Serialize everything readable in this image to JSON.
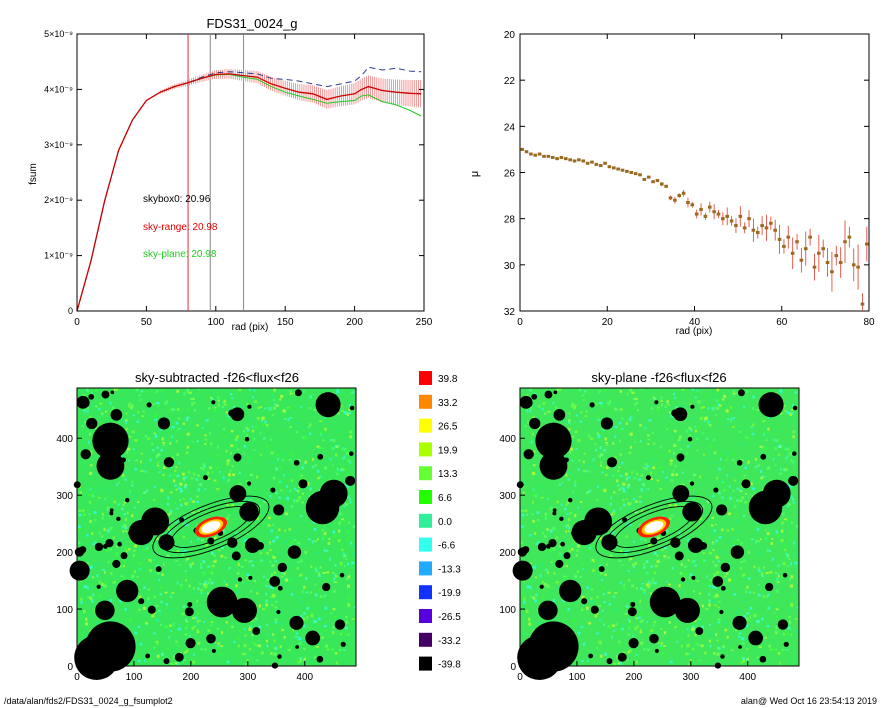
{
  "chart_data": [
    {
      "id": "growth-curve",
      "type": "line",
      "title": "FDS31_0024_g",
      "xlabel": "rad (pix)",
      "ylabel": "fsum",
      "xlim": [
        0,
        250
      ],
      "ylim": [
        0,
        5e-09
      ],
      "xticks": [
        "0",
        "50",
        "100",
        "150",
        "200",
        "250"
      ],
      "yticks": [
        "0",
        "1×10⁻⁹",
        "2×10⁻⁹",
        "3×10⁻⁹",
        "4×10⁻⁹",
        "5×10⁻⁹"
      ],
      "vlines": [
        {
          "x": 80,
          "color": "#e03030"
        },
        {
          "x": 96,
          "color": "#888888"
        },
        {
          "x": 120,
          "color": "#888888"
        }
      ],
      "annotations": [
        {
          "text": "skybox0: 20.96",
          "color": "#000000"
        },
        {
          "text": "sky-range: 20.98",
          "color": "#e00000"
        },
        {
          "text": "sky-plane: 20.98",
          "color": "#22cc22"
        }
      ],
      "series": [
        {
          "style": "dashed",
          "color": "#2b3a8c",
          "x": [
            0,
            10,
            20,
            30,
            40,
            50,
            60,
            70,
            80,
            90,
            100,
            110,
            120,
            130,
            140,
            150,
            160,
            170,
            180,
            190,
            200,
            205,
            210,
            220,
            230,
            240,
            248
          ],
          "y": [
            0,
            0.9,
            2.0,
            2.9,
            3.45,
            3.8,
            3.95,
            4.05,
            4.12,
            4.22,
            4.3,
            4.32,
            4.3,
            4.28,
            4.2,
            4.18,
            4.15,
            4.1,
            4.05,
            4.1,
            4.15,
            4.25,
            4.4,
            4.35,
            4.38,
            4.33,
            4.32
          ]
        },
        {
          "style": "solid",
          "color": "#cc0000",
          "x": [
            0,
            10,
            20,
            30,
            40,
            50,
            60,
            70,
            80,
            90,
            100,
            110,
            120,
            130,
            140,
            150,
            160,
            170,
            180,
            190,
            200,
            205,
            210,
            220,
            230,
            240,
            248
          ],
          "y": [
            0,
            0.9,
            2.0,
            2.9,
            3.45,
            3.8,
            3.95,
            4.05,
            4.12,
            4.2,
            4.27,
            4.28,
            4.25,
            4.22,
            4.1,
            4.02,
            3.95,
            3.92,
            3.82,
            3.88,
            3.92,
            4.0,
            4.05,
            3.98,
            3.95,
            3.93,
            3.92
          ]
        },
        {
          "style": "solid",
          "color": "#22cc22",
          "x": [
            0,
            10,
            20,
            30,
            40,
            50,
            60,
            70,
            80,
            90,
            100,
            110,
            120,
            130,
            140,
            150,
            160,
            170,
            180,
            190,
            200,
            205,
            210,
            220,
            230,
            240,
            248
          ],
          "y": [
            0,
            0.9,
            2.0,
            2.9,
            3.45,
            3.8,
            3.95,
            4.05,
            4.12,
            4.2,
            4.26,
            4.27,
            4.22,
            4.18,
            4.05,
            3.95,
            3.88,
            3.82,
            3.75,
            3.78,
            3.8,
            3.88,
            3.9,
            3.78,
            3.72,
            3.62,
            3.52
          ]
        }
      ]
    },
    {
      "id": "surface-brightness",
      "type": "scatter",
      "title": "",
      "xlabel": "rad (pix)",
      "ylabel": "μ",
      "xlim": [
        0,
        80
      ],
      "ylim": [
        32,
        20
      ],
      "xticks": [
        "0",
        "20",
        "40",
        "60",
        "80"
      ],
      "yticks": [
        "20",
        "22",
        "24",
        "26",
        "28",
        "30",
        "32"
      ],
      "points": {
        "x": [
          0.5,
          1.5,
          2.5,
          3.5,
          4.5,
          5.5,
          6.5,
          7.5,
          8.5,
          9.5,
          10.5,
          11.5,
          12.5,
          13.5,
          14.5,
          15.5,
          16.5,
          17.5,
          18.5,
          19.5,
          20.5,
          21.5,
          22.5,
          23.5,
          24.5,
          25.5,
          26.5,
          27.5,
          28.5,
          29.5,
          30.5,
          31.5,
          32.5,
          33.5,
          34.5,
          35.5,
          36.5,
          37.5,
          38.5,
          39.5,
          40.5,
          41.5,
          42.5,
          43.5,
          44.5,
          45.5,
          46.5,
          47.5,
          48.5,
          49.5,
          50.5,
          51.5,
          52.5,
          53.5,
          54.5,
          55.5,
          56.5,
          57.5,
          58.5,
          59.5,
          60.5,
          61.5,
          62.5,
          63.5,
          64.5,
          65.5,
          66.5,
          67.5,
          68.5,
          69.5,
          70.5,
          71.5,
          72.5,
          73.5,
          74.5,
          75.5,
          76.5,
          77.5,
          78.5,
          79.5
        ],
        "y": [
          25.0,
          25.1,
          25.2,
          25.25,
          25.2,
          25.3,
          25.3,
          25.35,
          25.4,
          25.35,
          25.4,
          25.45,
          25.5,
          25.45,
          25.5,
          25.6,
          25.55,
          25.65,
          25.7,
          25.6,
          25.75,
          25.8,
          25.85,
          25.9,
          25.95,
          26.0,
          26.05,
          26.1,
          26.3,
          26.2,
          26.4,
          26.35,
          26.5,
          26.6,
          27.1,
          27.2,
          27.0,
          26.9,
          27.3,
          27.4,
          27.8,
          27.6,
          27.9,
          27.5,
          27.7,
          27.8,
          28.0,
          27.9,
          28.1,
          28.3,
          27.9,
          28.4,
          28.0,
          28.5,
          28.6,
          28.3,
          28.4,
          28.2,
          28.5,
          28.9,
          29.2,
          28.8,
          29.5,
          29.0,
          29.8,
          29.3,
          28.8,
          30.1,
          29.5,
          29.3,
          29.9,
          30.3,
          29.6,
          29.9,
          29.0,
          28.8,
          30.0,
          30.1,
          31.7,
          29.1
        ]
      }
    },
    {
      "id": "sky-subtracted-map",
      "type": "heatmap",
      "title": "sky-subtracted -f26<flux<f26",
      "xlim": [
        0,
        490
      ],
      "ylim": [
        0,
        490
      ],
      "xticks": [
        "0",
        "100",
        "200",
        "300",
        "400"
      ],
      "yticks": [
        "0",
        "100",
        "200",
        "300",
        "400"
      ]
    },
    {
      "id": "sky-plane-map",
      "type": "heatmap",
      "title": "sky-plane -f26<flux<f26",
      "xlim": [
        0,
        490
      ],
      "ylim": [
        0,
        490
      ],
      "xticks": [
        "0",
        "100",
        "200",
        "300",
        "400"
      ],
      "yticks": [
        "0",
        "100",
        "200",
        "300",
        "400"
      ]
    }
  ],
  "colorbar": {
    "labels": [
      "39.8",
      "33.2",
      "26.5",
      "19.9",
      "13.3",
      "6.6",
      "0.0",
      "-6.6",
      "-13.3",
      "-19.9",
      "-26.5",
      "-33.2",
      "-39.8"
    ],
    "colors": [
      "#ff0000",
      "#ff8800",
      "#ffff00",
      "#aaff00",
      "#66ff33",
      "#22ff00",
      "#33ee99",
      "#33ffee",
      "#22aaff",
      "#1133ff",
      "#5500dd",
      "#440066",
      "#000000"
    ]
  },
  "footer": {
    "left": "/data/alan/fds2/FDS31_0024_g_fsumplot2",
    "right": "alan@  Wed Oct 16 23:54:13 2019"
  }
}
